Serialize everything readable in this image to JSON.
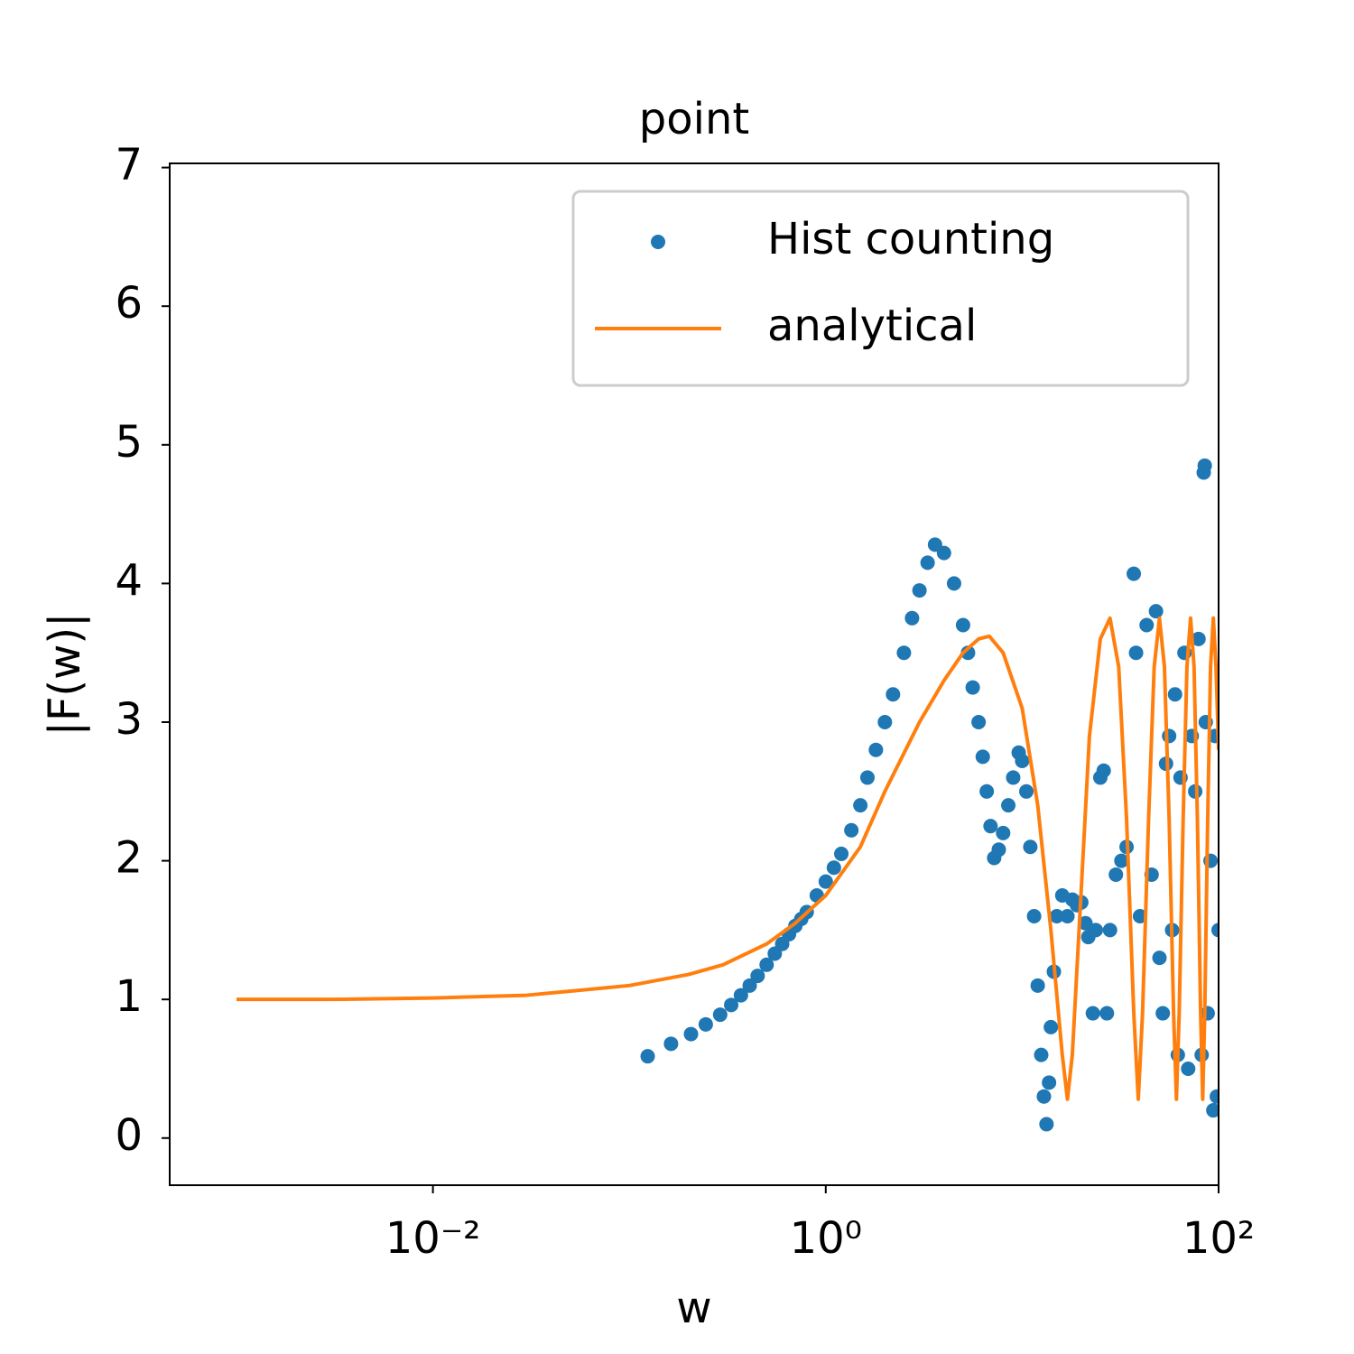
{
  "chart_data": {
    "type": "scatter-line",
    "title": "point",
    "x_label": "w",
    "y_label": "|F(w)|",
    "xscale": "log",
    "xlim": [
      0.000457,
      100
    ],
    "ylim": [
      -0.34,
      7.03
    ],
    "xticks": [
      {
        "value": 0.01,
        "label": "10⁻²"
      },
      {
        "value": 1,
        "label": "10⁰"
      },
      {
        "value": 100,
        "label": "10²"
      }
    ],
    "yticks": [
      0,
      1,
      2,
      3,
      4,
      5,
      6,
      7
    ],
    "legend": "upper right",
    "series": [
      {
        "name": "Hist counting",
        "color": "#1f77b4",
        "style": "markers",
        "x": [
          0.124,
          0.163,
          0.206,
          0.245,
          0.29,
          0.33,
          0.37,
          0.41,
          0.45,
          0.5,
          0.55,
          0.6,
          0.65,
          0.7,
          0.75,
          0.8,
          0.9,
          1.0,
          1.1,
          1.2,
          1.35,
          1.5,
          1.63,
          1.8,
          2.0,
          2.2,
          2.5,
          2.75,
          3.0,
          3.3,
          3.6,
          4.0,
          4.5,
          5.0,
          5.3,
          5.6,
          6.0,
          6.3,
          6.6,
          6.9,
          7.2,
          7.6,
          8.0,
          8.5,
          9.0,
          9.6,
          10.0,
          10.5,
          11.0,
          11.5,
          12.0,
          12.5,
          12.9,
          13.3,
          13.7,
          14.0,
          14.5,
          15.0,
          16.0,
          17.0,
          18.0,
          19.0,
          20.0,
          21.0,
          21.7,
          22.9,
          23.7,
          25.0,
          26.0,
          27.0,
          28.0,
          30.0,
          32.0,
          34.0,
          37.0,
          38.0,
          39.8,
          43.0,
          45.6,
          48.0,
          50.0,
          52.0,
          54.0,
          56.0,
          58.0,
          60.0,
          62.0,
          64.0,
          67.0,
          70.0,
          73.0,
          76.0,
          79.0,
          82.0,
          84.0,
          85.0,
          86.0,
          88.0,
          91.0,
          94.0,
          96.0,
          98.0,
          100.0
        ],
        "values": [
          0.59,
          0.68,
          0.75,
          0.82,
          0.89,
          0.96,
          1.03,
          1.1,
          1.17,
          1.25,
          1.33,
          1.4,
          1.47,
          1.53,
          1.58,
          1.63,
          1.75,
          1.85,
          1.95,
          2.05,
          2.22,
          2.4,
          2.6,
          2.8,
          3.0,
          3.2,
          3.5,
          3.75,
          3.95,
          4.15,
          4.28,
          4.22,
          4.0,
          3.7,
          3.5,
          3.25,
          3.0,
          2.75,
          2.5,
          2.25,
          2.02,
          2.08,
          2.2,
          2.4,
          2.6,
          2.78,
          2.72,
          2.5,
          2.1,
          1.6,
          1.1,
          0.6,
          0.3,
          0.1,
          0.4,
          0.8,
          1.2,
          1.6,
          1.75,
          1.6,
          1.72,
          1.68,
          1.7,
          1.55,
          1.45,
          0.9,
          1.5,
          2.6,
          2.65,
          0.9,
          1.5,
          1.9,
          2.0,
          2.1,
          4.07,
          3.5,
          1.6,
          3.7,
          1.9,
          3.8,
          1.3,
          0.9,
          2.7,
          2.9,
          1.5,
          3.2,
          0.6,
          2.6,
          3.5,
          0.5,
          2.9,
          2.5,
          3.6,
          0.6,
          4.8,
          4.85,
          3.0,
          0.9,
          2.0,
          0.2,
          2.9,
          0.3,
          1.5
        ]
      },
      {
        "name": "analytical",
        "color": "#ff7f0e",
        "style": "line",
        "x": [
          0.001,
          0.003,
          0.01,
          0.03,
          0.1,
          0.2,
          0.3,
          0.5,
          0.7,
          1,
          1.5,
          2,
          3,
          4,
          5,
          6,
          6.8,
          8,
          10,
          12,
          14,
          16,
          17,
          18,
          20,
          22,
          25,
          28,
          31,
          34,
          37,
          39,
          41,
          44,
          47,
          50,
          53,
          56,
          59,
          61,
          63,
          66,
          69,
          72,
          75,
          78,
          81,
          83,
          85,
          88,
          91,
          94,
          97,
          100
        ],
        "values": [
          1,
          1,
          1.01,
          1.03,
          1.1,
          1.18,
          1.25,
          1.4,
          1.55,
          1.75,
          2.1,
          2.5,
          3.0,
          3.3,
          3.5,
          3.6,
          3.62,
          3.5,
          3.1,
          2.4,
          1.5,
          0.6,
          0.28,
          0.6,
          1.8,
          2.9,
          3.6,
          3.75,
          3.4,
          2.3,
          0.9,
          0.28,
          0.9,
          2.3,
          3.4,
          3.75,
          3.4,
          2.3,
          0.9,
          0.28,
          0.9,
          2.3,
          3.4,
          3.75,
          3.4,
          2.3,
          0.9,
          0.28,
          0.9,
          2.3,
          3.4,
          3.75,
          3.4,
          2.8
        ]
      }
    ]
  }
}
